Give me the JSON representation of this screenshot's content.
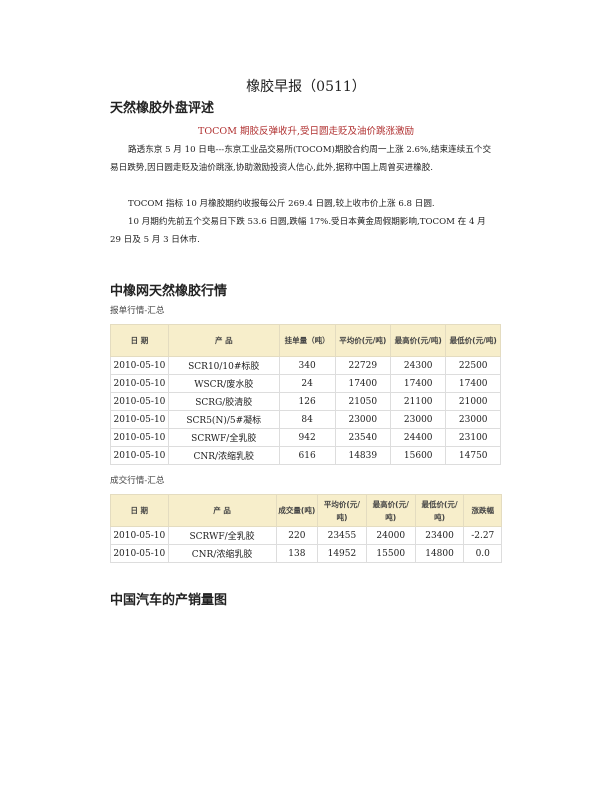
{
  "title": "橡胶早报（0511）",
  "section1": {
    "heading": "天然橡胶外盘评述",
    "subtitle": "TOCOM 期胶反弹收升,受日圆走贬及油价跳涨激励",
    "paragraphs": [
      "路透东京 5 月 10 日电---东京工业品交易所(TOCOM)期胶合约周一上涨 2.6%,结束连续五个交易日跌势,因日圆走贬及油价跳涨,协助激励投资人信心,此外,据称中国上周曾买进橡胶.",
      "TOCOM 指标 10 月橡胶期约收报每公斤 269.4 日圆,较上收市价上涨 6.8 日圆.",
      "10 月期约先前五个交易日下跌 53.6 日圆,跌幅 17%.受日本黄金周假期影响,TOCOM 在 4 月 29 日及 5 月 3 日休市."
    ]
  },
  "section2": {
    "heading": "中橡网天然橡胶行情",
    "table1": {
      "caption": "报单行情-汇总",
      "headers": [
        "日 期",
        "产 品",
        "挂单量（吨）",
        "平均价(元/吨)",
        "最高价(元/吨)",
        "最低价(元/吨)"
      ],
      "rows": [
        [
          "2010-05-10",
          "SCR10/10#标胶",
          "340",
          "22729",
          "24300",
          "22500"
        ],
        [
          "2010-05-10",
          "WSCR/废水胶",
          "24",
          "17400",
          "17400",
          "17400"
        ],
        [
          "2010-05-10",
          "SCRG/胶清胶",
          "126",
          "21050",
          "21100",
          "21000"
        ],
        [
          "2010-05-10",
          "SCR5(N)/5#凝标",
          "84",
          "23000",
          "23000",
          "23000"
        ],
        [
          "2010-05-10",
          "SCRWF/全乳胶",
          "942",
          "23540",
          "24400",
          "23100"
        ],
        [
          "2010-05-10",
          "CNR/浓缩乳胶",
          "616",
          "14839",
          "15600",
          "14750"
        ]
      ]
    },
    "table2": {
      "caption": "成交行情-汇总",
      "headers": [
        "日 期",
        "产 品",
        "成交量(吨)",
        "平均价(元/吨)",
        "最高价(元/吨)",
        "最低价(元/吨)",
        "涨跌幅"
      ],
      "rows": [
        [
          "2010-05-10",
          "SCRWF/全乳胶",
          "220",
          "23455",
          "24000",
          "23400",
          "-2.27"
        ],
        [
          "2010-05-10",
          "CNR/浓缩乳胶",
          "138",
          "14952",
          "15500",
          "14800",
          "0.0"
        ]
      ]
    }
  },
  "section3": {
    "heading": "中国汽车的产销量图"
  }
}
